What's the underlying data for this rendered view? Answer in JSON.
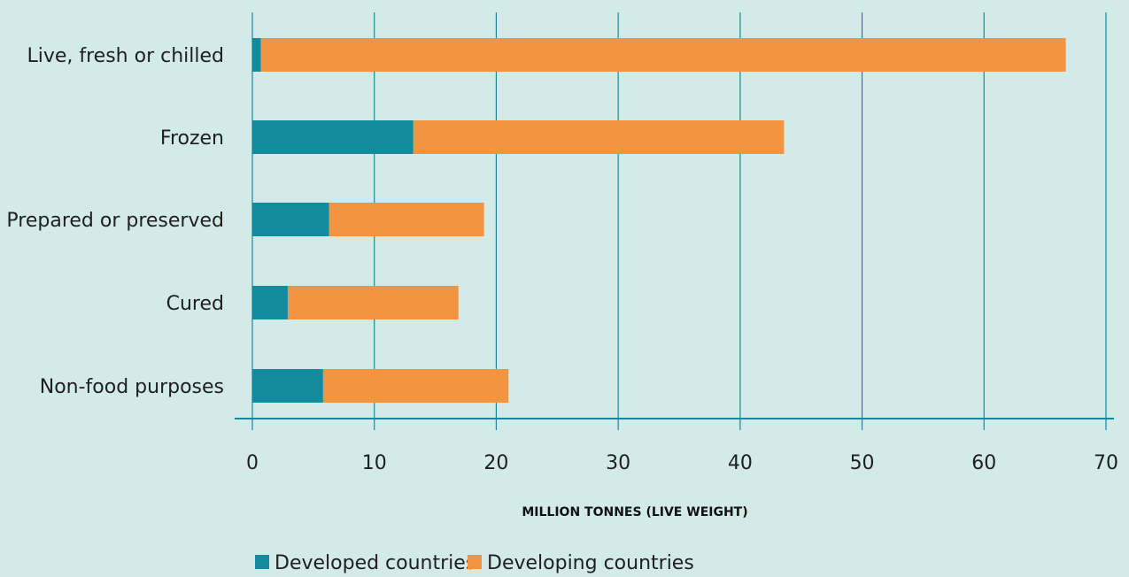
{
  "chart_data": {
    "type": "bar",
    "orientation": "horizontal",
    "stacked": true,
    "categories": [
      "Live, fresh or chilled",
      "Frozen",
      "Prepared or preserved",
      "Cured",
      "Non-food purposes"
    ],
    "series": [
      {
        "name": "Developed countries",
        "color": "#148a9e",
        "values": [
          0.7,
          13.2,
          6.3,
          2.9,
          5.8
        ]
      },
      {
        "name": "Developing countries",
        "color": "#f39441",
        "values": [
          66.0,
          30.4,
          12.7,
          14.0,
          15.2
        ]
      }
    ],
    "title": "",
    "xlabel": "MILLION TONNES (LIVE WEIGHT)",
    "ylabel": "",
    "xlim": [
      0,
      70
    ],
    "xticks": [
      0,
      10,
      20,
      30,
      40,
      50,
      60,
      70
    ],
    "tick_labels": [
      "0",
      "10",
      "20",
      "30",
      "40",
      "50",
      "60",
      "70"
    ],
    "grid": "vertical",
    "legend_position": "bottom",
    "gridline_color": "#148a9e",
    "background_color": "#d2ebe8"
  }
}
